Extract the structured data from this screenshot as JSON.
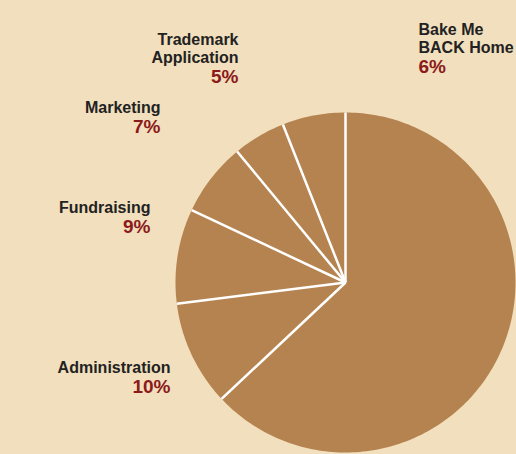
{
  "chart_data": {
    "type": "pie",
    "categories": [
      "Bake Me BACK Home",
      "Trademark Application",
      "Marketing",
      "Fundraising",
      "Administration",
      null
    ],
    "values": [
      6,
      5,
      7,
      9,
      10,
      63
    ],
    "value_labels": [
      "6%",
      "5%",
      "7%",
      "9%",
      "10%",
      null
    ],
    "color": "#b5834f",
    "data_labels": true
  }
}
